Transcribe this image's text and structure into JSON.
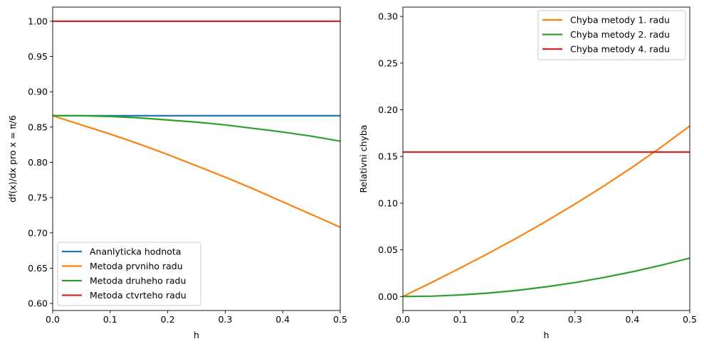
{
  "chart_data": [
    {
      "type": "line",
      "xlabel": "h",
      "ylabel": "df(x)/dx pro x = π/6",
      "xlim": [
        0,
        0.5
      ],
      "ylim": [
        0.59,
        1.02
      ],
      "xticks": [
        "0.0",
        "0.1",
        "0.2",
        "0.3",
        "0.4",
        "0.5"
      ],
      "yticks": [
        "0.60",
        "0.65",
        "0.70",
        "0.75",
        "0.80",
        "0.85",
        "0.90",
        "0.95",
        "1.00"
      ],
      "grid": false,
      "legend": "lower-left",
      "series": [
        {
          "name": "Ananlyticka hodnota",
          "color": "#1f77b4",
          "x": [
            0,
            0.5
          ],
          "y": [
            0.866,
            0.866
          ]
        },
        {
          "name": "Metoda prvniho radu",
          "color": "#ff7f0e",
          "x": [
            0,
            0.05,
            0.1,
            0.15,
            0.2,
            0.25,
            0.3,
            0.35,
            0.4,
            0.45,
            0.5
          ],
          "y": [
            0.866,
            0.853,
            0.84,
            0.826,
            0.811,
            0.795,
            0.779,
            0.762,
            0.744,
            0.726,
            0.708
          ]
        },
        {
          "name": "Metoda druheho radu",
          "color": "#2ca02c",
          "x": [
            0,
            0.05,
            0.1,
            0.15,
            0.2,
            0.25,
            0.3,
            0.35,
            0.4,
            0.45,
            0.5
          ],
          "y": [
            0.866,
            0.866,
            0.865,
            0.863,
            0.86,
            0.857,
            0.853,
            0.848,
            0.843,
            0.837,
            0.83
          ]
        },
        {
          "name": "Metoda ctvrteho radu",
          "color": "#d62728",
          "x": [
            0,
            0.5
          ],
          "y": [
            1.0,
            1.0
          ]
        }
      ]
    },
    {
      "type": "line",
      "xlabel": "h",
      "ylabel": "Relativni chyba",
      "xlim": [
        0,
        0.5
      ],
      "ylim": [
        -0.015,
        0.31
      ],
      "xticks": [
        "0.0",
        "0.1",
        "0.2",
        "0.3",
        "0.4",
        "0.5"
      ],
      "yticks": [
        "0.00",
        "0.05",
        "0.10",
        "0.15",
        "0.20",
        "0.25",
        "0.30"
      ],
      "grid": false,
      "legend": "upper-right",
      "series": [
        {
          "name": "Chyba metody 1. radu",
          "color": "#ff7f0e",
          "x": [
            0,
            0.05,
            0.1,
            0.15,
            0.2,
            0.25,
            0.3,
            0.35,
            0.4,
            0.45,
            0.5
          ],
          "y": [
            0.0,
            0.015,
            0.0305,
            0.0465,
            0.0632,
            0.0807,
            0.099,
            0.1183,
            0.1385,
            0.16,
            0.1826
          ]
        },
        {
          "name": "Chyba metody 2. radu",
          "color": "#2ca02c",
          "x": [
            0,
            0.05,
            0.1,
            0.15,
            0.2,
            0.25,
            0.3,
            0.35,
            0.4,
            0.45,
            0.5
          ],
          "y": [
            0.0,
            0.0004,
            0.0017,
            0.0037,
            0.0066,
            0.0104,
            0.0149,
            0.0203,
            0.0265,
            0.0335,
            0.0411
          ]
        },
        {
          "name": "Chyba metody 4. radu",
          "color": "#d62728",
          "x": [
            0,
            0.5
          ],
          "y": [
            0.1547,
            0.1547
          ]
        }
      ]
    }
  ]
}
